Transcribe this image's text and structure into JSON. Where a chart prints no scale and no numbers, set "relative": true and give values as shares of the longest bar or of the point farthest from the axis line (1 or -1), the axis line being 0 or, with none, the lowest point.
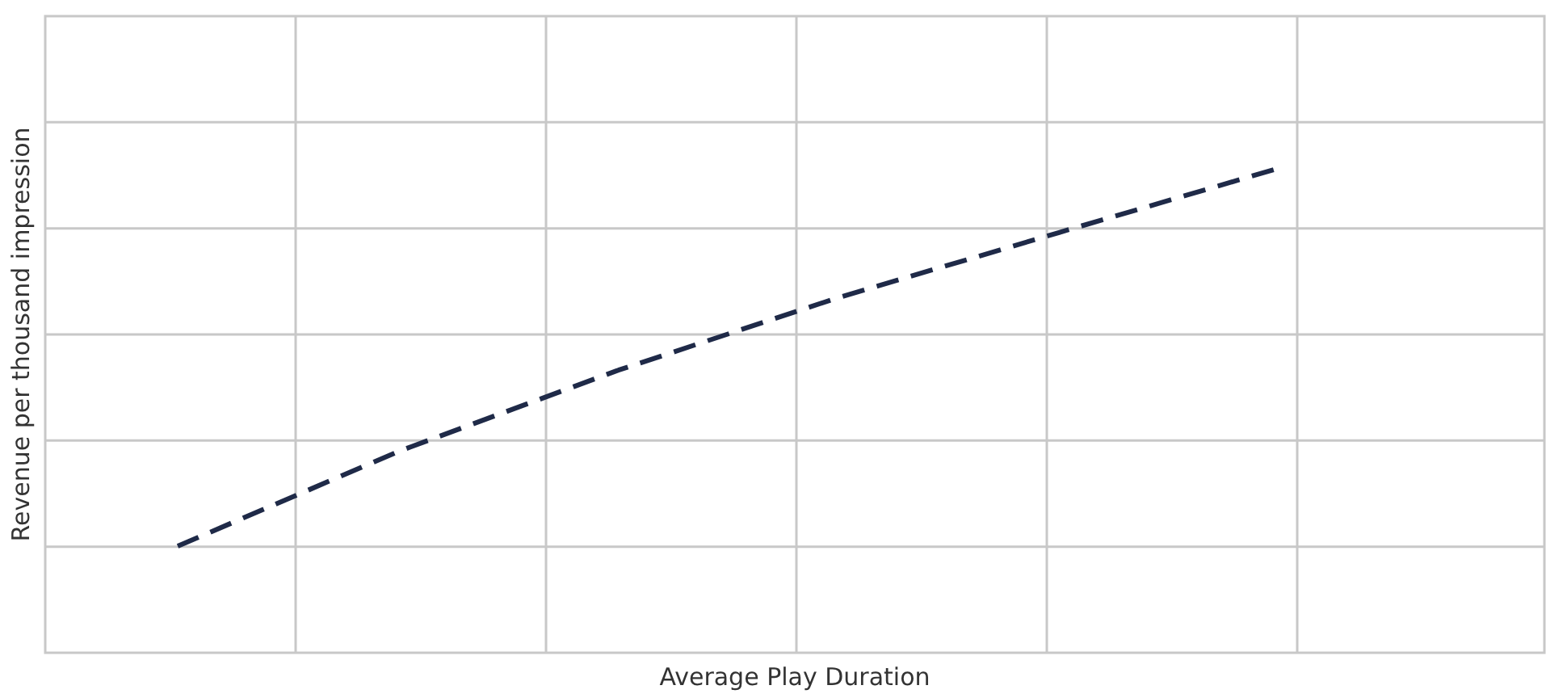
{
  "chart_data": {
    "type": "line",
    "xlabel": "Average Play Duration",
    "ylabel": "Revenue per thousand impression",
    "categories": [
      null,
      null,
      null,
      null,
      null,
      null
    ],
    "relative": true,
    "grid": true,
    "line_style": "dashed",
    "series": [
      {
        "color": "#1f2a48",
        "values": [
          0.22,
          0.415,
          0.583,
          0.733,
          0.867,
          1
        ]
      }
    ]
  }
}
